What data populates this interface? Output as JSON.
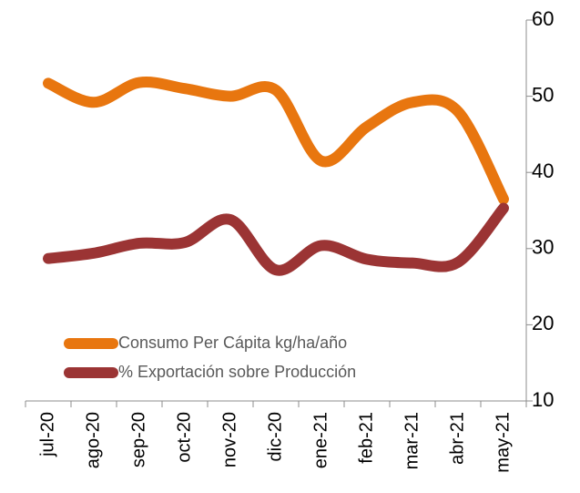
{
  "chart_data": {
    "type": "line",
    "categories": [
      "jul-20",
      "ago-20",
      "sep-20",
      "oct-20",
      "nov-20",
      "dic-20",
      "ene-21",
      "feb-21",
      "mar-21",
      "abr-21",
      "may-21"
    ],
    "series": [
      {
        "name": "Consumo Per Cápita kg/ha/año",
        "color": "#e8760f",
        "values": [
          51.7,
          49.2,
          51.8,
          51.0,
          50.0,
          50.8,
          41.5,
          46.0,
          49.2,
          48.0,
          36.5
        ]
      },
      {
        "name": "% Exportación sobre Producción",
        "color": "#9b3434",
        "values": [
          28.7,
          29.4,
          30.7,
          30.8,
          33.8,
          27.2,
          30.4,
          28.6,
          28.1,
          28.2,
          35.3
        ]
      }
    ],
    "ylim": [
      10,
      60
    ],
    "yticks": [
      10,
      20,
      30,
      40,
      50,
      60
    ],
    "y_axis_side": "right",
    "legend": "lower left"
  }
}
